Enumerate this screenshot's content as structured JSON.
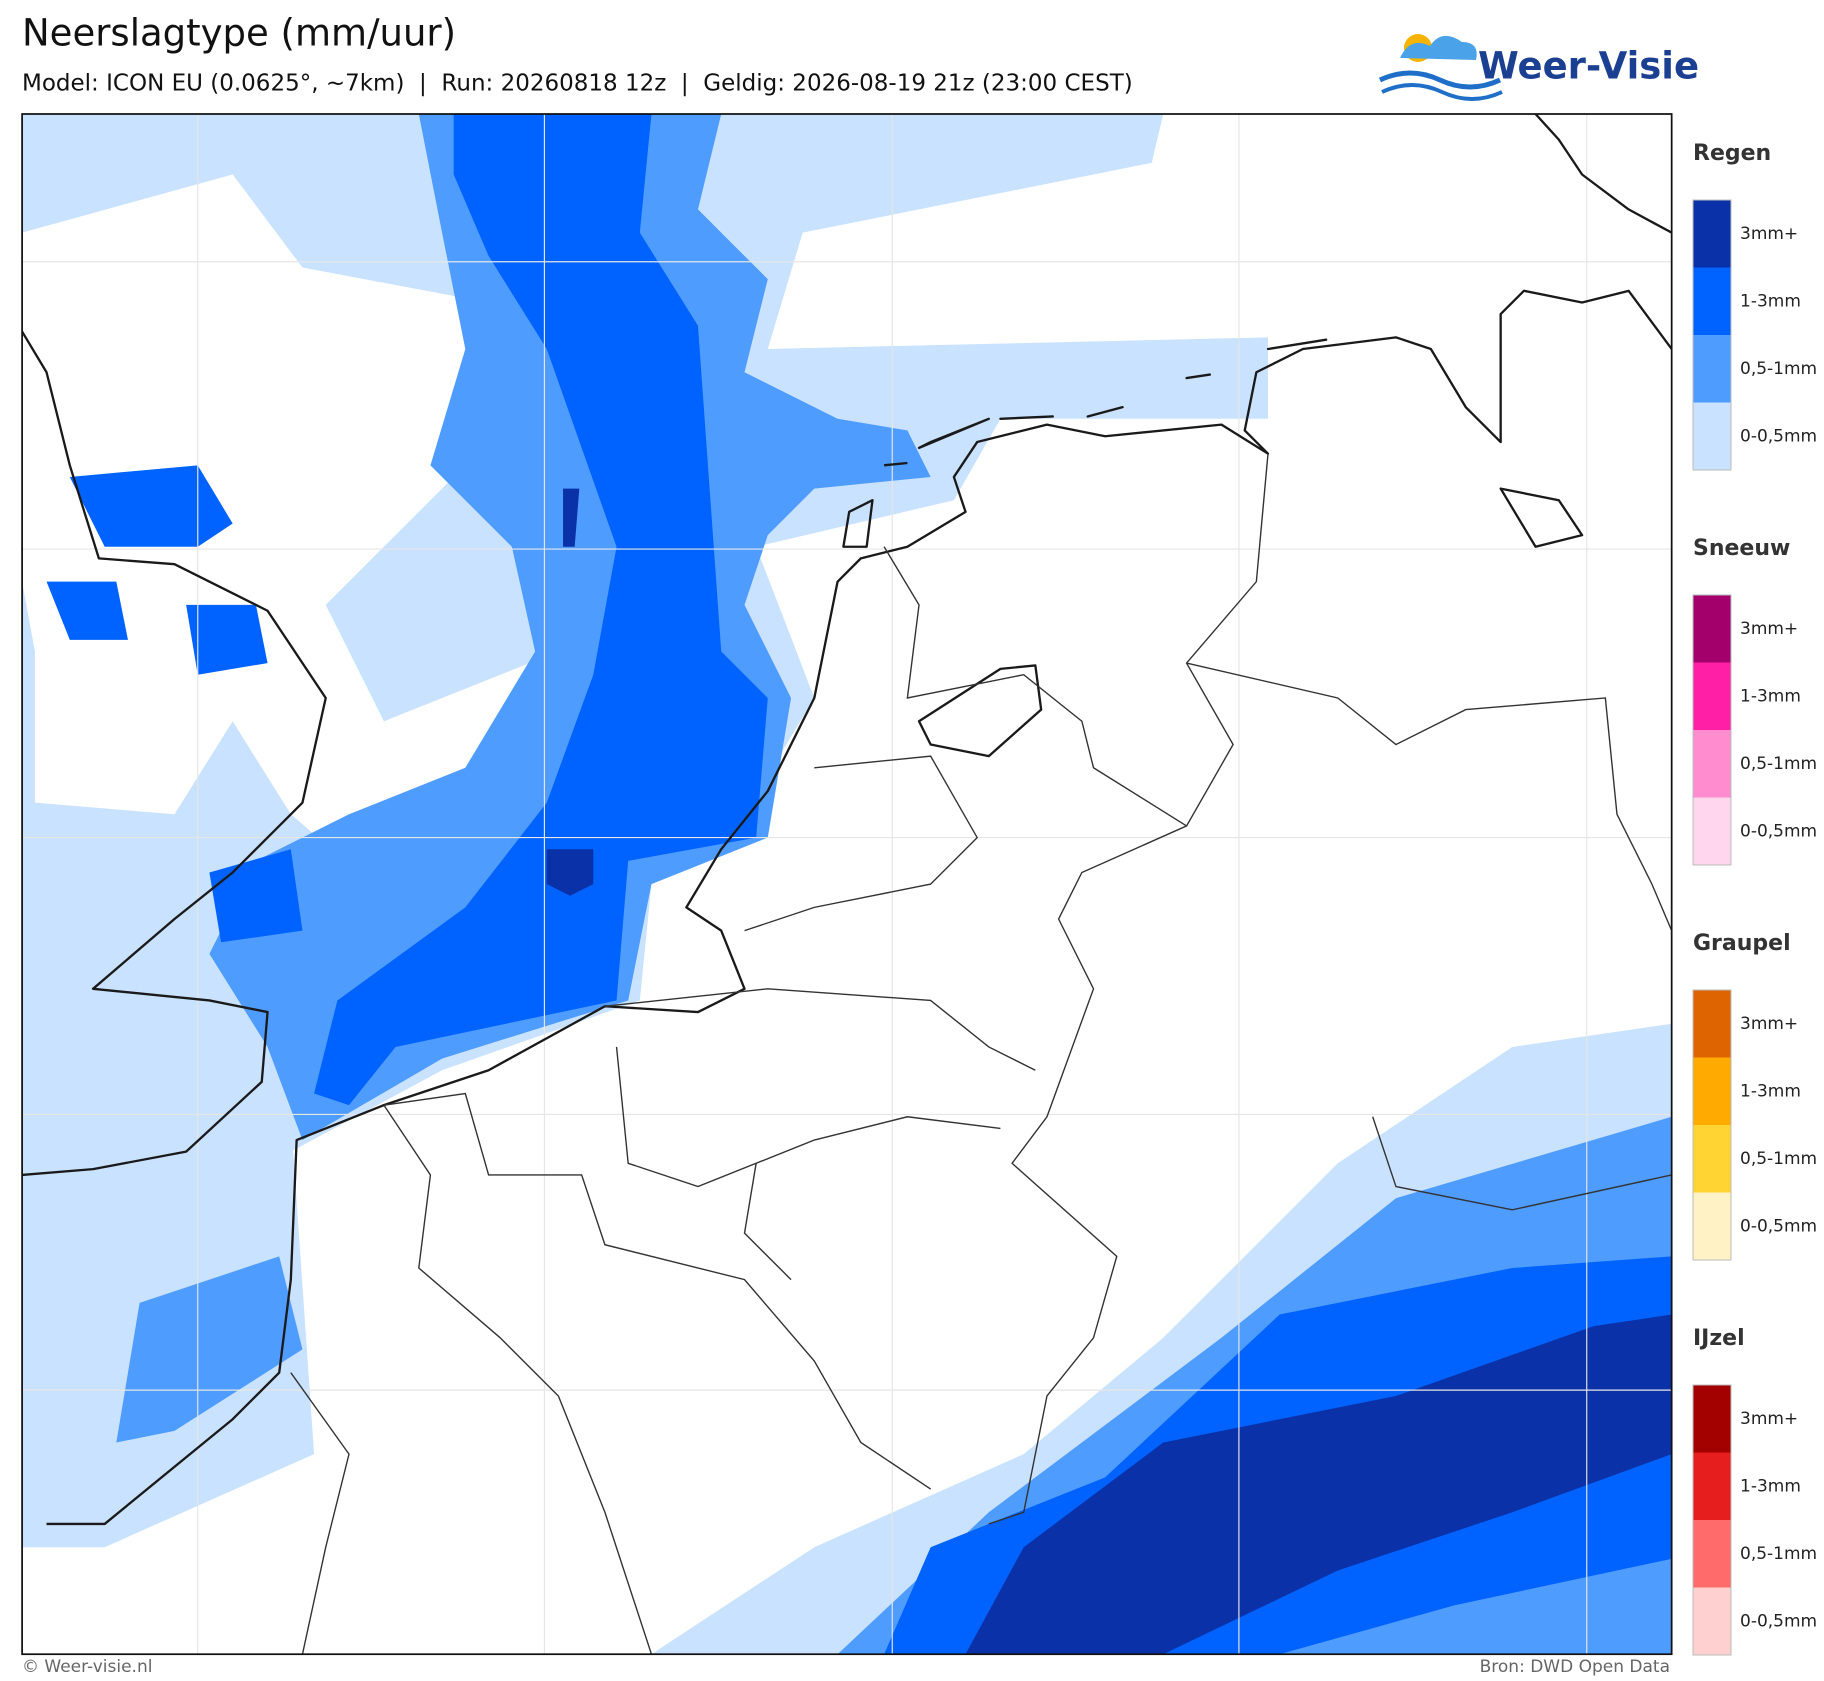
{
  "header": {
    "title": "Neerslagtype (mm/uur)",
    "subtitle": "Model: ICON EU (0.0625°, ~7km)  |  Run: 20260818 12z  |  Geldig: 2026-08-19 21z (23:00 CEST)",
    "logo": "Weer-Visie"
  },
  "legend": [
    {
      "title": "Regen",
      "items": [
        {
          "label": "3mm+",
          "color": "#0a31a8"
        },
        {
          "label": "1-3mm",
          "color": "#0063ff"
        },
        {
          "label": "0,5-1mm",
          "color": "#4f9cff"
        },
        {
          "label": "0-0,5mm",
          "color": "#c9e2ff"
        }
      ]
    },
    {
      "title": "Sneeuw",
      "items": [
        {
          "label": "3mm+",
          "color": "#a3006b"
        },
        {
          "label": "1-3mm",
          "color": "#ff1fa6"
        },
        {
          "label": "0,5-1mm",
          "color": "#ff8ccf"
        },
        {
          "label": "0-0,5mm",
          "color": "#ffd6ee"
        }
      ]
    },
    {
      "title": "Graupel",
      "items": [
        {
          "label": "3mm+",
          "color": "#dd6400"
        },
        {
          "label": "1-3mm",
          "color": "#ffaa00"
        },
        {
          "label": "0,5-1mm",
          "color": "#ffd433"
        },
        {
          "label": "0-0,5mm",
          "color": "#fff2c4"
        }
      ]
    },
    {
      "title": "IJzel",
      "items": [
        {
          "label": "3mm+",
          "color": "#a30000"
        },
        {
          "label": "1-3mm",
          "color": "#e61e1e"
        },
        {
          "label": "0,5-1mm",
          "color": "#ff6b6b"
        },
        {
          "label": "0-0,5mm",
          "color": "#ffd0d0"
        }
      ]
    }
  ],
  "footer": {
    "left": "© Weer-visie.nl",
    "right": "Bron: DWD Open Data"
  }
}
